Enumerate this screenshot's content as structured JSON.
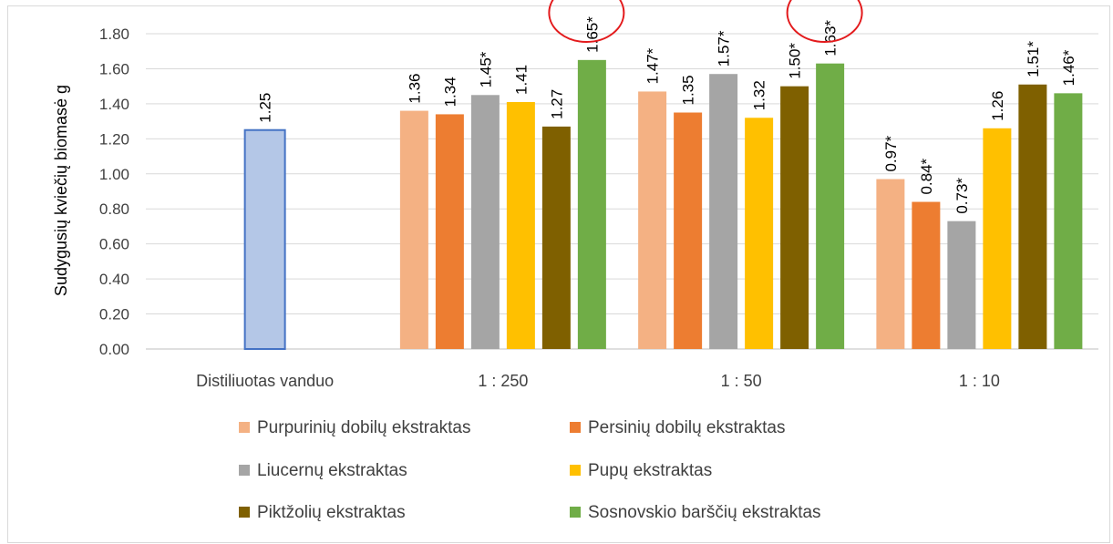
{
  "chart_data": {
    "type": "bar",
    "ylabel": "Sudygusių kviečių biomasė g",
    "ylim": [
      0,
      1.8
    ],
    "ystep": 0.2,
    "yticks": [
      "0.00",
      "0.20",
      "0.40",
      "0.60",
      "0.80",
      "1.00",
      "1.20",
      "1.40",
      "1.60",
      "1.80"
    ],
    "grid": true,
    "legend_position": "bottom",
    "categories": [
      "Distiliuotas vanduo",
      "1 : 250",
      "1 : 50",
      "1 : 10"
    ],
    "control": {
      "category": "Distiliuotas vanduo",
      "value": 1.25,
      "label": "1.25",
      "color": "#b4c7e7",
      "edge": "#4472c4"
    },
    "series": [
      {
        "name": "Purpurinių dobilų ekstraktas",
        "color": "#f4b183",
        "values": [
          null,
          1.36,
          1.47,
          0.97
        ],
        "labels": [
          "",
          "1.36",
          "1.47*",
          "0.97*"
        ]
      },
      {
        "name": "Persinių dobilų ekstraktas",
        "color": "#ed7d31",
        "values": [
          null,
          1.34,
          1.35,
          0.84
        ],
        "labels": [
          "",
          "1.34",
          "1.35",
          "0.84*"
        ]
      },
      {
        "name": "Liucernų ekstraktas",
        "color": "#a5a5a5",
        "values": [
          null,
          1.45,
          1.57,
          0.73
        ],
        "labels": [
          "",
          "1.45*",
          "1.57*",
          "0.73*"
        ]
      },
      {
        "name": "Pupų ekstraktas",
        "color": "#ffc000",
        "values": [
          null,
          1.41,
          1.32,
          1.26
        ],
        "labels": [
          "",
          "1.41",
          "1.32",
          "1.26"
        ]
      },
      {
        "name": "Piktžolių ekstraktas",
        "color": "#7f6000",
        "values": [
          null,
          1.27,
          1.5,
          1.51
        ],
        "labels": [
          "",
          "1.27",
          "1.50*",
          "1.51*"
        ]
      },
      {
        "name": "Sosnovskio barščių ekstraktas",
        "color": "#70ad47",
        "values": [
          null,
          1.65,
          1.63,
          1.46
        ],
        "labels": [
          "",
          "1.65*",
          "1.63*",
          "1.46*"
        ]
      }
    ],
    "annotations": [
      {
        "type": "circle",
        "color": "#e31a1c",
        "around": "Sosnovskio barščių ekstraktas @ 1 : 250"
      },
      {
        "type": "circle",
        "color": "#e31a1c",
        "around": "Sosnovskio barščių ekstraktas @ 1 : 50"
      }
    ]
  }
}
